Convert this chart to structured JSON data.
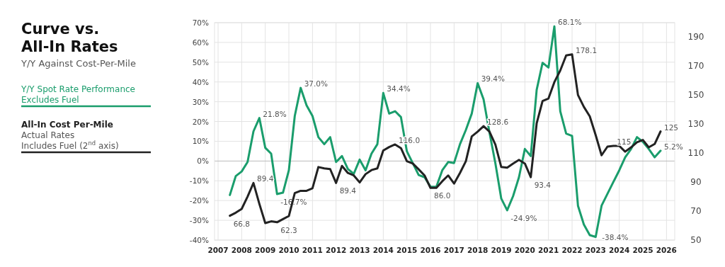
{
  "chart_data": {
    "type": "line",
    "title": "Curve vs. All-In Rates",
    "subtitle": "Y/Y Against Cost-Per-Mile",
    "annotations": [
      "Actual Rates",
      "Includes Fuel (2$^{nd}$ axis)"
    ],
    "xlim": [
      2006.85,
      2026.35
    ],
    "xticks": [
      2007,
      2008,
      2009,
      2010,
      2011,
      2012,
      2013,
      2014,
      2015,
      2016,
      2017,
      2018,
      2019,
      2020,
      2021,
      2022,
      2023,
      2024,
      2025,
      2026
    ],
    "ylim": [
      -40,
      70
    ],
    "yticks": [
      {
        "value": -40,
        "label": "-40%"
      },
      {
        "value": -30,
        "label": "-30%"
      },
      {
        "value": -20,
        "label": "-20%"
      },
      {
        "value": -10,
        "label": "-10%"
      },
      {
        "value": 0,
        "label": "0%"
      },
      {
        "value": 10,
        "label": "10%"
      },
      {
        "value": 20,
        "label": "20%"
      },
      {
        "value": 30,
        "label": "30%"
      },
      {
        "value": 40,
        "label": "40%"
      },
      {
        "value": 50,
        "label": "50%"
      },
      {
        "value": 60,
        "label": "60%"
      },
      {
        "value": 70,
        "label": "70%"
      }
    ],
    "y2lim": [
      50,
      200
    ],
    "y2ticks": [
      50,
      70,
      90,
      110,
      130,
      150,
      170,
      190
    ],
    "grid": true,
    "legend": "left",
    "marker": "none",
    "line_style": "solid",
    "series": [
      {
        "name": "Y/Y Spot Rate Performance Excludes Fuel",
        "color": "#1a9d6c",
        "x": [
          2007.5,
          2007.75,
          2008,
          2008.25,
          2008.5,
          2008.75,
          2009,
          2009.25,
          2009.5,
          2009.75,
          2010,
          2010.25,
          2010.5,
          2010.75,
          2011,
          2011.25,
          2011.5,
          2011.75,
          2012,
          2012.25,
          2012.5,
          2012.75,
          2013,
          2013.25,
          2013.5,
          2013.75,
          2014,
          2014.25,
          2014.5,
          2014.75,
          2015,
          2015.25,
          2015.5,
          2015.75,
          2016,
          2016.25,
          2016.5,
          2016.75,
          2017,
          2017.25,
          2017.5,
          2017.75,
          2018,
          2018.25,
          2018.5,
          2018.75,
          2019,
          2019.25,
          2019.5,
          2019.75,
          2020,
          2020.25,
          2020.5,
          2020.75,
          2021,
          2021.25,
          2021.5,
          2021.75,
          2022,
          2022.25,
          2022.5,
          2022.75,
          2023,
          2023.25,
          2023.5,
          2023.75,
          2024,
          2024.25,
          2024.5,
          2024.75,
          2025,
          2025.25,
          2025.5,
          2025.75
        ],
        "values": [
          -17.2,
          -7.6,
          -5.3,
          -0.5,
          15,
          21.8,
          6.7,
          3.7,
          -16.7,
          -16,
          -4.7,
          22.8,
          37.0,
          28.2,
          22.8,
          12.1,
          8.5,
          12.1,
          -0.5,
          2.5,
          -4,
          -6.5,
          0.7,
          -4.7,
          3.7,
          8.5,
          34.4,
          24,
          25.2,
          22.2,
          4.9,
          -1.1,
          -7.1,
          -8.2,
          -13,
          -13,
          -4.7,
          -0.5,
          -1,
          8.5,
          15.7,
          24,
          39.4,
          31.2,
          14.5,
          -1.1,
          -19,
          -24.9,
          -17.8,
          -8.2,
          6.1,
          2.5,
          36,
          49.7,
          47.3,
          68.1,
          25.2,
          13.9,
          12.7,
          -22.6,
          -32.1,
          -37.5,
          -38.4,
          -22.6,
          -16.6,
          -10.6,
          -4.7,
          1.9,
          6.1,
          12.1,
          9.7,
          6.1,
          1.9,
          5.2
        ],
        "value_labels": [
          null,
          null,
          null,
          null,
          null,
          "21.8%",
          null,
          null,
          "-16.7%",
          null,
          null,
          null,
          "37.0%",
          null,
          null,
          null,
          null,
          null,
          null,
          null,
          null,
          null,
          null,
          null,
          null,
          null,
          "34.4%",
          null,
          null,
          null,
          null,
          null,
          null,
          null,
          null,
          null,
          null,
          null,
          null,
          null,
          null,
          null,
          "39.4%",
          null,
          null,
          null,
          null,
          "-24.9%",
          null,
          null,
          null,
          null,
          null,
          null,
          null,
          "68.1%",
          null,
          null,
          null,
          null,
          null,
          null,
          "-38.4%",
          null,
          null,
          null,
          null,
          null,
          null,
          null,
          null,
          null,
          null,
          "5.2%"
        ]
      },
      {
        "name": "All-In Cost Per-Mile",
        "color": "#222222",
        "axis": "y2",
        "x": [
          2007.5,
          2007.75,
          2008,
          2008.25,
          2008.5,
          2008.75,
          2009,
          2009.25,
          2009.5,
          2009.75,
          2010,
          2010.25,
          2010.5,
          2010.75,
          2011,
          2011.25,
          2011.5,
          2011.75,
          2012,
          2012.25,
          2012.5,
          2012.75,
          2013,
          2013.25,
          2013.5,
          2013.75,
          2014,
          2014.25,
          2014.5,
          2014.75,
          2015,
          2015.25,
          2015.5,
          2015.75,
          2016,
          2016.25,
          2016.5,
          2016.75,
          2017,
          2017.25,
          2017.5,
          2017.75,
          2018,
          2018.25,
          2018.5,
          2018.75,
          2019,
          2019.25,
          2019.5,
          2019.75,
          2020,
          2020.25,
          2020.5,
          2020.75,
          2021,
          2021.25,
          2021.5,
          2021.75,
          2022,
          2022.25,
          2022.5,
          2022.75,
          2023,
          2023.25,
          2023.5,
          2023.75,
          2024,
          2024.25,
          2024.5,
          2024.75,
          2025,
          2025.25,
          2025.5,
          2025.75
        ],
        "values": [
          66.8,
          68.9,
          71.5,
          80,
          89.4,
          75,
          61.7,
          62.9,
          62.3,
          64.5,
          66.6,
          82.4,
          84,
          84,
          85.7,
          100.4,
          99.5,
          99,
          89.4,
          101.2,
          96.3,
          94.6,
          89.8,
          95.5,
          98.3,
          99.5,
          111.8,
          114.2,
          116.0,
          113.4,
          104.4,
          102.8,
          98.8,
          94.6,
          86.0,
          86,
          90.6,
          94.6,
          89,
          96.3,
          104.4,
          121.5,
          124.8,
          128.6,
          124.8,
          115.9,
          100.4,
          100,
          102.8,
          105.3,
          102.8,
          93.4,
          130.5,
          146,
          147.7,
          159,
          167,
          177.4,
          178.1,
          150.1,
          141.9,
          135.4,
          122.4,
          108.5,
          114.5,
          115,
          115,
          111,
          114,
          117.5,
          119.1,
          114,
          116.3,
          125
        ],
        "value_labels": [
          "66.8",
          null,
          null,
          null,
          "89.4",
          null,
          null,
          null,
          "62.3",
          null,
          null,
          null,
          null,
          null,
          null,
          null,
          null,
          null,
          "89.4",
          null,
          null,
          null,
          null,
          null,
          null,
          null,
          null,
          null,
          "116.0",
          null,
          null,
          null,
          null,
          null,
          "86.0",
          null,
          null,
          null,
          null,
          null,
          null,
          null,
          null,
          "128.6",
          null,
          null,
          null,
          null,
          null,
          null,
          null,
          "93.4",
          null,
          null,
          null,
          null,
          null,
          null,
          "178.1",
          null,
          null,
          null,
          null,
          null,
          null,
          "115",
          null,
          null,
          null,
          null,
          null,
          null,
          null,
          "125"
        ]
      }
    ]
  }
}
